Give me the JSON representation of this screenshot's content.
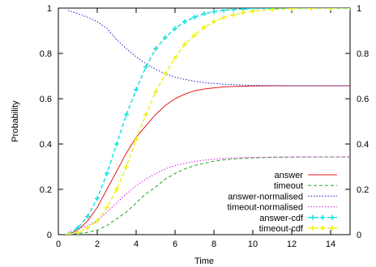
{
  "chart_data": {
    "type": "line",
    "title": "",
    "xlabel": "Time",
    "ylabel": "Probability",
    "xlim": [
      0,
      15
    ],
    "ylim": [
      0,
      1
    ],
    "x_ticks": [
      0,
      2,
      4,
      6,
      8,
      10,
      12,
      14
    ],
    "y_ticks": [
      0,
      0.2,
      0.4,
      0.6,
      0.8,
      1
    ],
    "y_tick_labels": [
      "0",
      "0.2",
      "0.4",
      "0.6",
      "0.8",
      "1"
    ],
    "y2_tick_labels": [
      "0",
      "0.2",
      "0.4",
      "0.6",
      "0.8",
      "1"
    ],
    "x_tick_labels": [
      "0",
      "2",
      "4",
      "6",
      "8",
      "10",
      "12",
      "14"
    ],
    "grid": false,
    "legend_position": "bottom-right",
    "x": [
      0.5,
      1,
      1.5,
      2,
      2.5,
      3,
      3.5,
      4,
      4.5,
      5,
      5.5,
      6,
      6.5,
      7,
      7.5,
      8,
      8.5,
      9,
      9.5,
      10,
      11,
      12,
      13,
      14,
      15
    ],
    "series": [
      {
        "name": "answer",
        "color": "#e41a1c",
        "style": "solid",
        "values": [
          0.0,
          0.02,
          0.06,
          0.12,
          0.2,
          0.28,
          0.36,
          0.43,
          0.48,
          0.53,
          0.57,
          0.6,
          0.62,
          0.635,
          0.643,
          0.648,
          0.652,
          0.654,
          0.655,
          0.656,
          0.657,
          0.657,
          0.657,
          0.657,
          0.657
        ]
      },
      {
        "name": "timeout",
        "color": "#1ca81c",
        "style": "dashed",
        "values": [
          0.0,
          0.005,
          0.01,
          0.02,
          0.04,
          0.07,
          0.1,
          0.14,
          0.18,
          0.21,
          0.245,
          0.27,
          0.29,
          0.305,
          0.315,
          0.324,
          0.33,
          0.334,
          0.337,
          0.339,
          0.341,
          0.342,
          0.343,
          0.343,
          0.343
        ]
      },
      {
        "name": "answer-normalised",
        "color": "#1c1cc8",
        "style": "dotted",
        "values": [
          0.99,
          0.975,
          0.96,
          0.94,
          0.91,
          0.86,
          0.82,
          0.785,
          0.755,
          0.73,
          0.71,
          0.695,
          0.685,
          0.677,
          0.671,
          0.667,
          0.664,
          0.662,
          0.66,
          0.659,
          0.658,
          0.657,
          0.657,
          0.657,
          0.657
        ]
      },
      {
        "name": "timeout-normalised",
        "color": "#e01ce0",
        "style": "dotted",
        "values": [
          0.01,
          0.025,
          0.04,
          0.06,
          0.1,
          0.14,
          0.18,
          0.215,
          0.245,
          0.27,
          0.29,
          0.305,
          0.315,
          0.323,
          0.329,
          0.333,
          0.336,
          0.338,
          0.34,
          0.341,
          0.342,
          0.343,
          0.343,
          0.343,
          0.343
        ]
      },
      {
        "name": "answer-cdf",
        "color": "#1ce0e0",
        "style": "dashed-markers",
        "values": [
          0.0,
          0.03,
          0.08,
          0.16,
          0.27,
          0.4,
          0.53,
          0.64,
          0.74,
          0.82,
          0.87,
          0.91,
          0.94,
          0.96,
          0.975,
          0.984,
          0.99,
          0.994,
          0.996,
          0.998,
          0.999,
          1.0,
          1.0,
          1.0,
          1.0
        ]
      },
      {
        "name": "timeout-cdf",
        "color": "#f0f01c",
        "style": "dashed-markers",
        "values": [
          0.0,
          0.01,
          0.03,
          0.06,
          0.12,
          0.2,
          0.3,
          0.42,
          0.53,
          0.63,
          0.71,
          0.78,
          0.84,
          0.88,
          0.915,
          0.94,
          0.958,
          0.97,
          0.98,
          0.986,
          0.994,
          0.998,
          0.999,
          1.0,
          1.0
        ]
      }
    ]
  }
}
